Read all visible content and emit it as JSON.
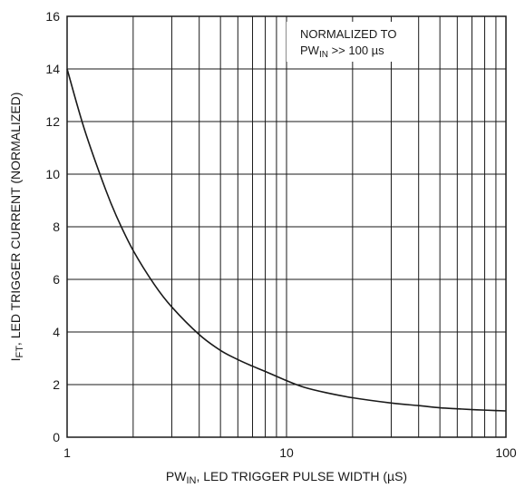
{
  "chart_data": {
    "type": "line",
    "x_scale": "log",
    "y_scale": "linear",
    "xlim": [
      1,
      100
    ],
    "ylim": [
      0,
      16
    ],
    "x_ticks": [
      1,
      10,
      100
    ],
    "x_tick_labels": [
      "1",
      "10",
      "100"
    ],
    "y_ticks": [
      0,
      2,
      4,
      6,
      8,
      10,
      12,
      14,
      16
    ],
    "y_tick_labels": [
      "0",
      "2",
      "4",
      "6",
      "8",
      "10",
      "12",
      "14",
      "16"
    ],
    "grid": true,
    "xlabel": {
      "main": "PW",
      "sub": "IN",
      "rest": ", LED TRIGGER PULSE WIDTH (µS)"
    },
    "ylabel": {
      "main": "I",
      "sub": "FT",
      "rest": ", LED TRIGGER CURRENT (NORMALIZED)"
    },
    "annotation": {
      "line1": "NORMALIZED TO",
      "line2_main": "PW",
      "line2_sub": "IN",
      "line2_rest": " >> 100 µs"
    },
    "series": [
      {
        "x": [
          1,
          1.2,
          1.5,
          1.7,
          2,
          2.5,
          3,
          4,
          5,
          6,
          7,
          8,
          10,
          12,
          15,
          20,
          30,
          40,
          50,
          60,
          70,
          80,
          100
        ],
        "y": [
          14,
          11.7,
          9.4,
          8.3,
          7.1,
          5.8,
          4.95,
          3.9,
          3.3,
          2.95,
          2.7,
          2.5,
          2.15,
          1.9,
          1.7,
          1.5,
          1.3,
          1.2,
          1.12,
          1.08,
          1.05,
          1.03,
          1.0
        ],
        "color": "#1a1a1a"
      }
    ]
  }
}
